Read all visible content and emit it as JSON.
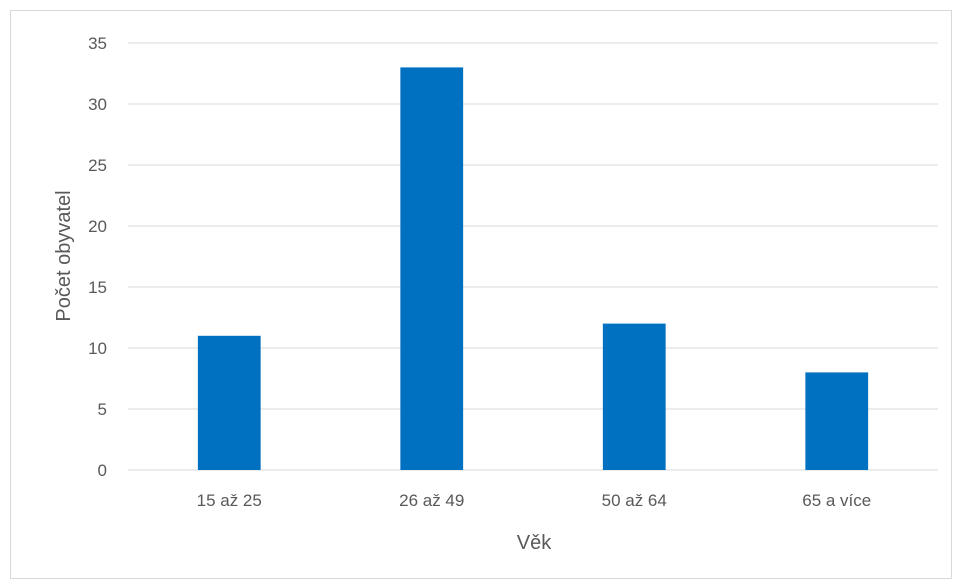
{
  "chart_data": {
    "type": "bar",
    "categories": [
      "15 až 25",
      "26 až 49",
      "50 až 64",
      "65 a více"
    ],
    "values": [
      11,
      33,
      12,
      8
    ],
    "title": "",
    "xlabel": "Věk",
    "ylabel": "Počet obyvatel",
    "ylim": [
      0,
      35
    ],
    "yticks": [
      0,
      5,
      10,
      15,
      20,
      25,
      30,
      35
    ],
    "grid": true,
    "legend": "none",
    "bar_color": "#0070C0",
    "grid_color": "#d9d9d9",
    "text_color": "#595959"
  }
}
